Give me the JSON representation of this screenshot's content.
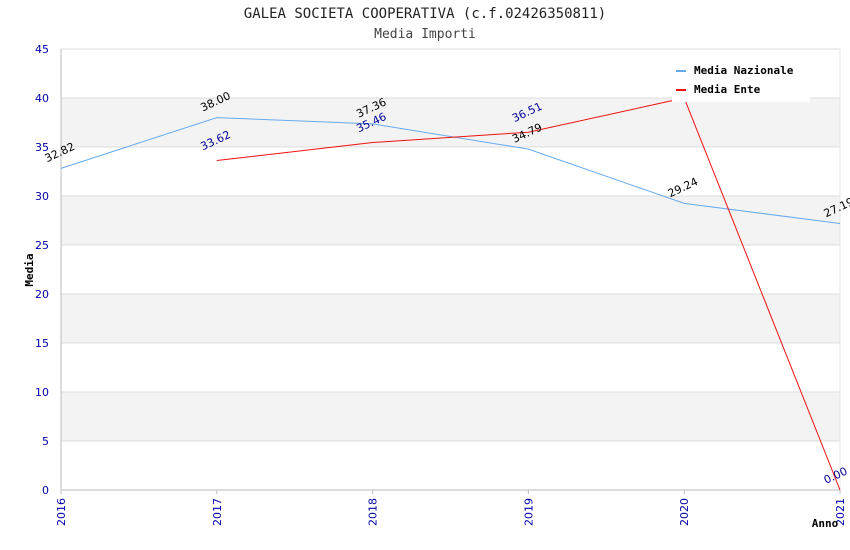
{
  "title": "GALEA SOCIETA COOPERATIVA (c.f.02426350811)",
  "subtitle": "Media Importi",
  "chart_data": {
    "type": "line",
    "title": "GALEA SOCIETA COOPERATIVA (c.f.02426350811)",
    "subtitle": "Media Importi",
    "xlabel": "Anno",
    "ylabel": "Media",
    "categories": [
      "2016",
      "2017",
      "2018",
      "2019",
      "2020",
      "2021"
    ],
    "yticks": [
      0,
      5,
      10,
      15,
      20,
      25,
      30,
      35,
      40,
      45
    ],
    "ylim": [
      0,
      45
    ],
    "legend_position": "top-right",
    "series": [
      {
        "name": "Media Nazionale",
        "color": "#66aaee",
        "label_color": "#000000",
        "values": [
          32.82,
          38.0,
          37.36,
          34.79,
          29.24,
          27.19
        ],
        "labels": [
          "32.82",
          "38.00",
          "37.36",
          "34.79",
          "29.24",
          "27.19"
        ]
      },
      {
        "name": "Media Ente",
        "color": "#ee1111",
        "label_color": "#000099",
        "values": [
          null,
          33.62,
          35.46,
          36.51,
          40.0,
          0.0
        ],
        "labels": [
          null,
          "33.62",
          "35.46",
          "36.51",
          null,
          "0.00"
        ]
      }
    ]
  }
}
